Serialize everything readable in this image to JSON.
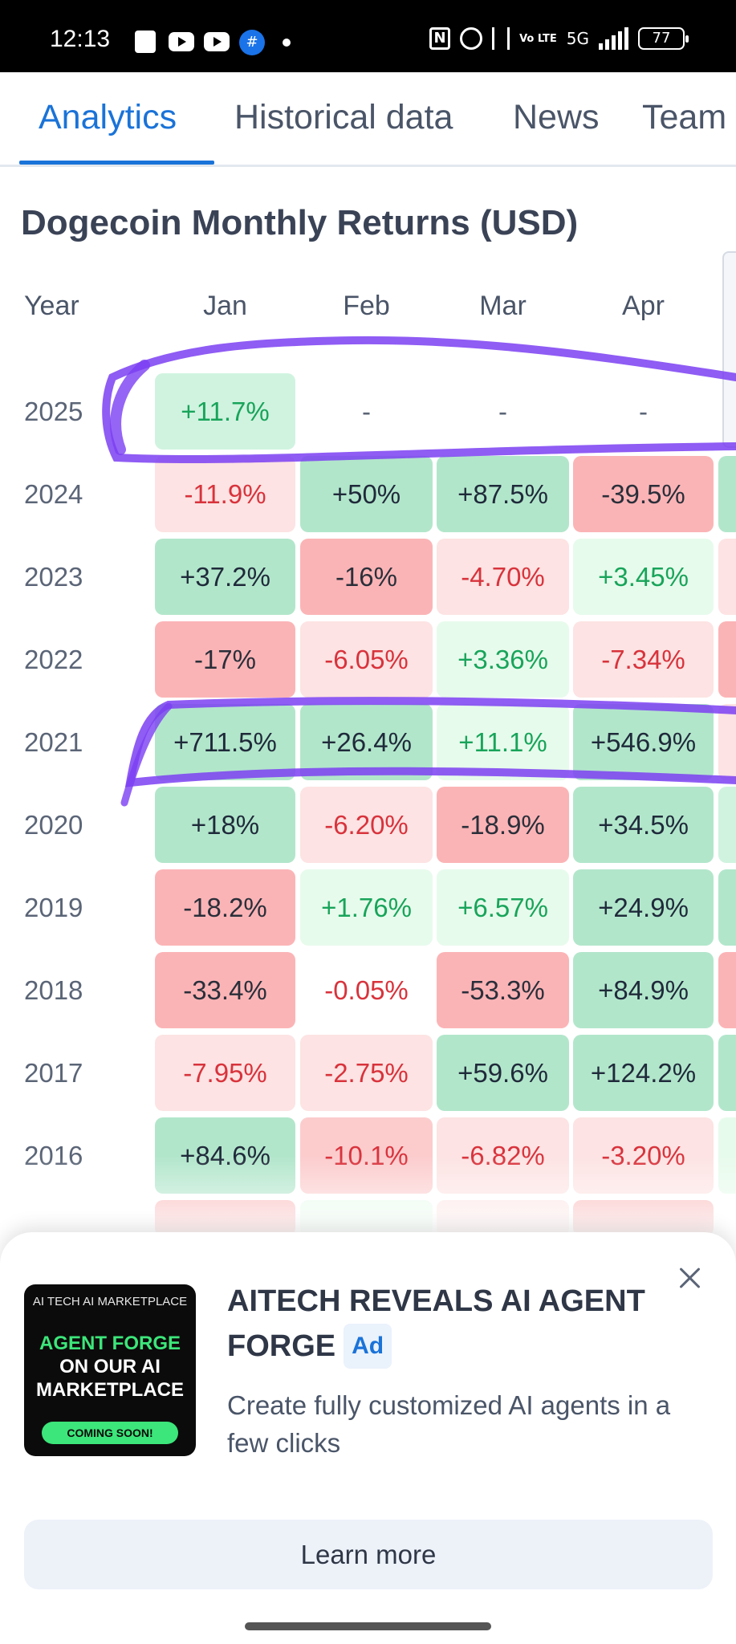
{
  "status_bar": {
    "time": "12:13",
    "icons": [
      "shopping-bag-icon",
      "youtube-icon",
      "youtube-icon",
      "app-icon",
      "notification-dot-icon",
      "nfc-icon",
      "alarm-icon",
      "vibrate-icon",
      "volte-icon",
      "signal-5g-icon",
      "battery-icon"
    ],
    "network": "5G",
    "volte": "Vo LTE",
    "nfc": "N",
    "app_glyph": "#",
    "battery": "77"
  },
  "tabs": [
    {
      "label": "Analytics",
      "active": true
    },
    {
      "label": "Historical data",
      "active": false
    },
    {
      "label": "News",
      "active": false
    },
    {
      "label": "Team",
      "active": false
    }
  ],
  "title": "Dogecoin Monthly Returns (USD)",
  "table": {
    "headers": [
      "Year",
      "Jan",
      "Feb",
      "Mar",
      "Apr"
    ],
    "rows": [
      {
        "year": "2025",
        "values": [
          "+11.7%",
          "-",
          "-",
          "-"
        ]
      },
      {
        "year": "2024",
        "values": [
          "-11.9%",
          "+50%",
          "+87.5%",
          "-39.5%"
        ]
      },
      {
        "year": "2023",
        "values": [
          "+37.2%",
          "-16%",
          "-4.70%",
          "+3.45%"
        ]
      },
      {
        "year": "2022",
        "values": [
          "-17%",
          "-6.05%",
          "+3.36%",
          "-7.34%"
        ]
      },
      {
        "year": "2021",
        "values": [
          "+711.5%",
          "+26.4%",
          "+11.1%",
          "+546.9%"
        ]
      },
      {
        "year": "2020",
        "values": [
          "+18%",
          "-6.20%",
          "-18.9%",
          "+34.5%"
        ]
      },
      {
        "year": "2019",
        "values": [
          "-18.2%",
          "+1.76%",
          "+6.57%",
          "+24.9%"
        ]
      },
      {
        "year": "2018",
        "values": [
          "-33.4%",
          "-0.05%",
          "-53.3%",
          "+84.9%"
        ]
      },
      {
        "year": "2017",
        "values": [
          "-7.95%",
          "-2.75%",
          "+59.6%",
          "+124.2%"
        ]
      },
      {
        "year": "2016",
        "values": [
          "+84.6%",
          "-10.1%",
          "-6.82%",
          "-3.20%"
        ]
      }
    ],
    "colors": {
      "green_strong": "#b2e6cb",
      "green_light": "#e7fbec",
      "red_strong": "#fbb4b6",
      "red_light": "#fde3e3",
      "highlight_annotation": "#7b3ff2"
    }
  },
  "ad": {
    "image_brand": "AI TECH AI MARKETPLACE",
    "image_headline_green": "AGENT FORGE",
    "image_headline_white": "ON OUR AI MARKETPLACE",
    "image_cta": "COMING SOON!",
    "title": "AITECH REVEALS AI AGENT FORGE",
    "badge": "Ad",
    "description": "Create fully customized AI agents in a few clicks",
    "cta": "Learn more"
  }
}
